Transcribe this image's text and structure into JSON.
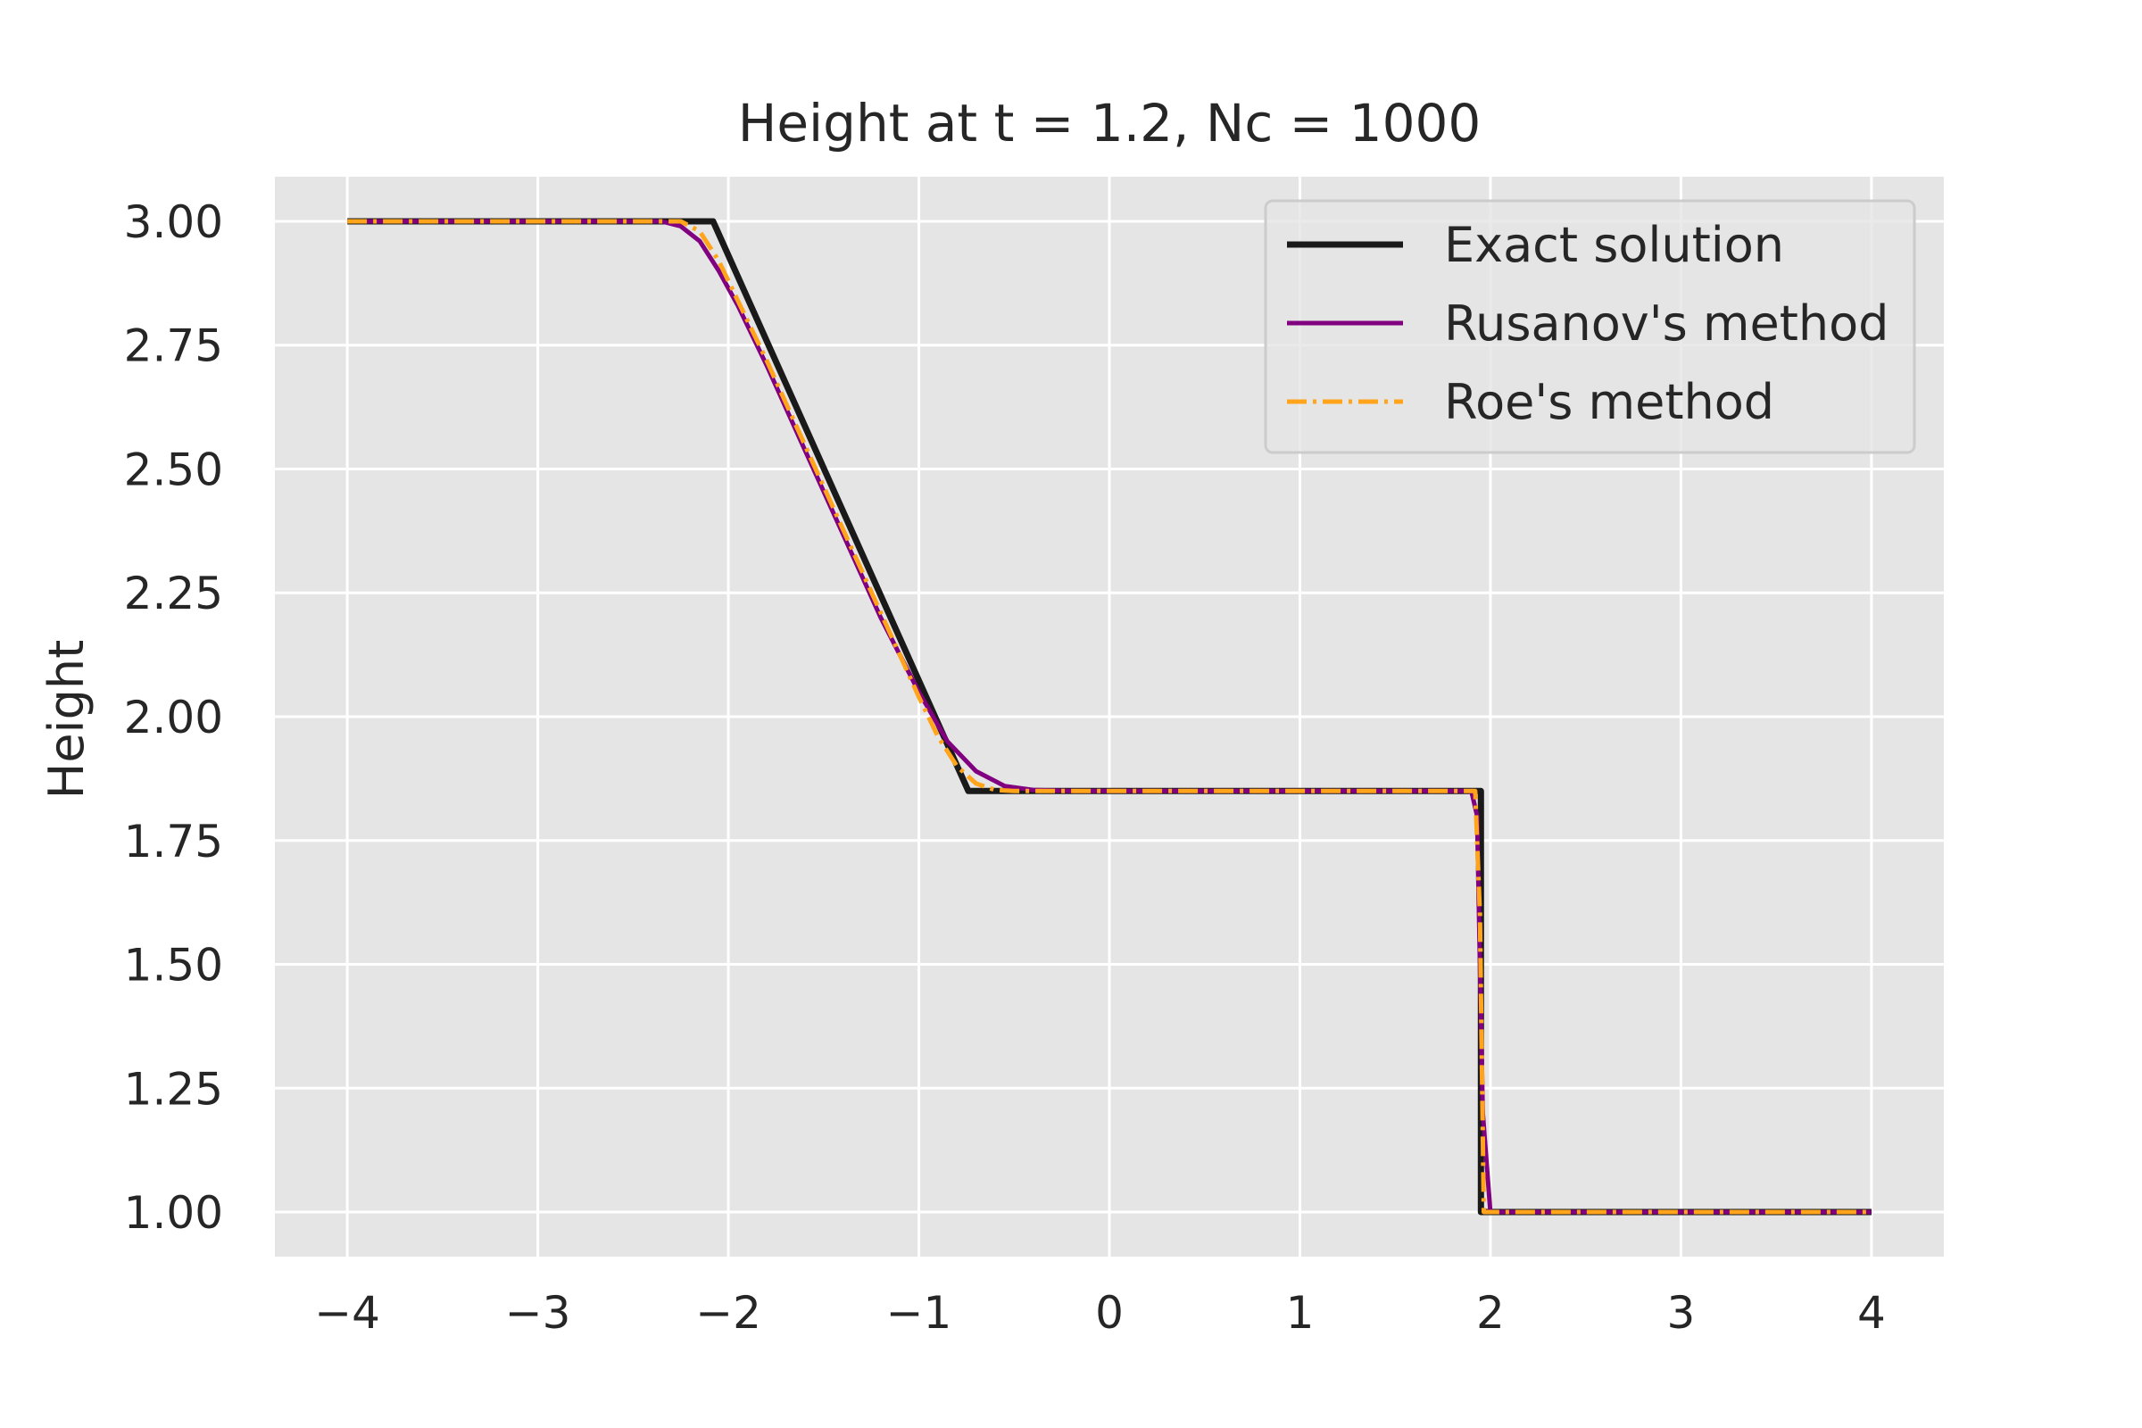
{
  "chart_data": {
    "type": "line",
    "title": "Height at t = 1.2, Nc = 1000",
    "xlabel": "",
    "ylabel": "Height",
    "xlim": [
      -4.38,
      4.38
    ],
    "ylim": [
      0.91,
      3.09
    ],
    "xticks": [
      -4,
      -3,
      -2,
      -1,
      0,
      1,
      2,
      3,
      4
    ],
    "xtick_labels": [
      "−4",
      "−3",
      "−2",
      "−1",
      "0",
      "1",
      "2",
      "3",
      "4"
    ],
    "yticks": [
      1.0,
      1.25,
      1.5,
      1.75,
      2.0,
      2.25,
      2.5,
      2.75,
      3.0
    ],
    "ytick_labels": [
      "1.00",
      "1.25",
      "1.50",
      "1.75",
      "2.00",
      "2.25",
      "2.50",
      "2.75",
      "3.00"
    ],
    "grid": true,
    "legend_position": "top-right",
    "background": "#e5e5e5",
    "series": [
      {
        "name": "Exact solution",
        "color": "#1a1a1a",
        "style": "solid",
        "x": [
          -4.0,
          -2.08,
          -0.74,
          1.95,
          1.95,
          4.0
        ],
        "y": [
          3.0,
          3.0,
          1.85,
          1.85,
          1.0,
          1.0
        ]
      },
      {
        "name": "Rusanov's method",
        "color": "#800080",
        "style": "solid",
        "x": [
          -4.0,
          -2.35,
          -2.25,
          -2.15,
          -2.05,
          -1.95,
          -1.8,
          -1.6,
          -1.4,
          -1.2,
          -1.0,
          -0.85,
          -0.7,
          -0.55,
          -0.4,
          -0.2,
          1.9,
          1.93,
          1.96,
          2.0,
          4.0
        ],
        "y": [
          3.0,
          3.0,
          2.99,
          2.96,
          2.9,
          2.83,
          2.71,
          2.54,
          2.37,
          2.2,
          2.05,
          1.95,
          1.89,
          1.86,
          1.852,
          1.85,
          1.85,
          1.8,
          1.2,
          1.0,
          1.0
        ]
      },
      {
        "name": "Roe's method",
        "color": "#ffa41b",
        "style": "dashdot",
        "x": [
          -4.0,
          -2.25,
          -2.15,
          -2.05,
          -1.95,
          -1.8,
          -1.6,
          -1.4,
          -1.2,
          -1.0,
          -0.9,
          -0.8,
          -0.7,
          -0.6,
          -0.5,
          1.92,
          1.945,
          1.965,
          4.0
        ],
        "y": [
          3.0,
          3.0,
          2.98,
          2.92,
          2.84,
          2.72,
          2.55,
          2.38,
          2.21,
          2.04,
          1.96,
          1.9,
          1.865,
          1.852,
          1.85,
          1.85,
          1.6,
          1.0,
          1.0
        ]
      }
    ]
  }
}
